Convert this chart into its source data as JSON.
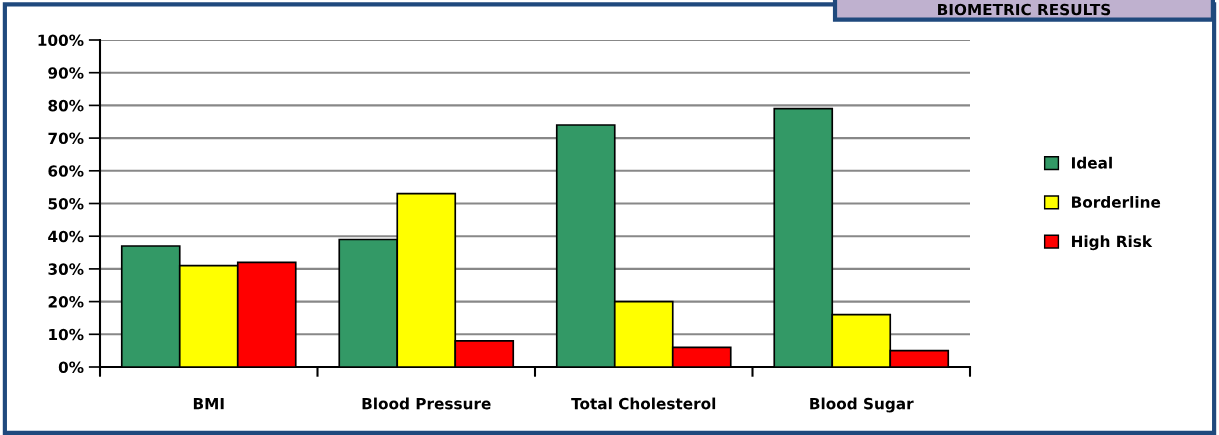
{
  "chart_data": {
    "type": "bar",
    "title": "BIOMETRIC RESULTS",
    "categories": [
      "BMI",
      "Blood Pressure",
      "Total Cholesterol",
      "Blood Sugar"
    ],
    "series": [
      {
        "name": "Ideal",
        "color": "#339966",
        "values": [
          37,
          39,
          74,
          79
        ]
      },
      {
        "name": "Borderline",
        "color": "#ffff00",
        "values": [
          31,
          53,
          20,
          16
        ]
      },
      {
        "name": "High Risk",
        "color": "#ff0000",
        "values": [
          32,
          8,
          6,
          5
        ]
      }
    ],
    "ylim": [
      0,
      100
    ],
    "yticks": [
      {
        "value": 0,
        "label": "0%"
      },
      {
        "value": 10,
        "label": "10%"
      },
      {
        "value": 20,
        "label": "20%"
      },
      {
        "value": 30,
        "label": "30%"
      },
      {
        "value": 40,
        "label": "40%"
      },
      {
        "value": 50,
        "label": "50%"
      },
      {
        "value": 60,
        "label": "60%"
      },
      {
        "value": 70,
        "label": "70%"
      },
      {
        "value": 80,
        "label": "80%"
      },
      {
        "value": 90,
        "label": "90%"
      },
      {
        "value": 100,
        "label": "100%"
      }
    ],
    "grid": "y",
    "legend": "right"
  }
}
